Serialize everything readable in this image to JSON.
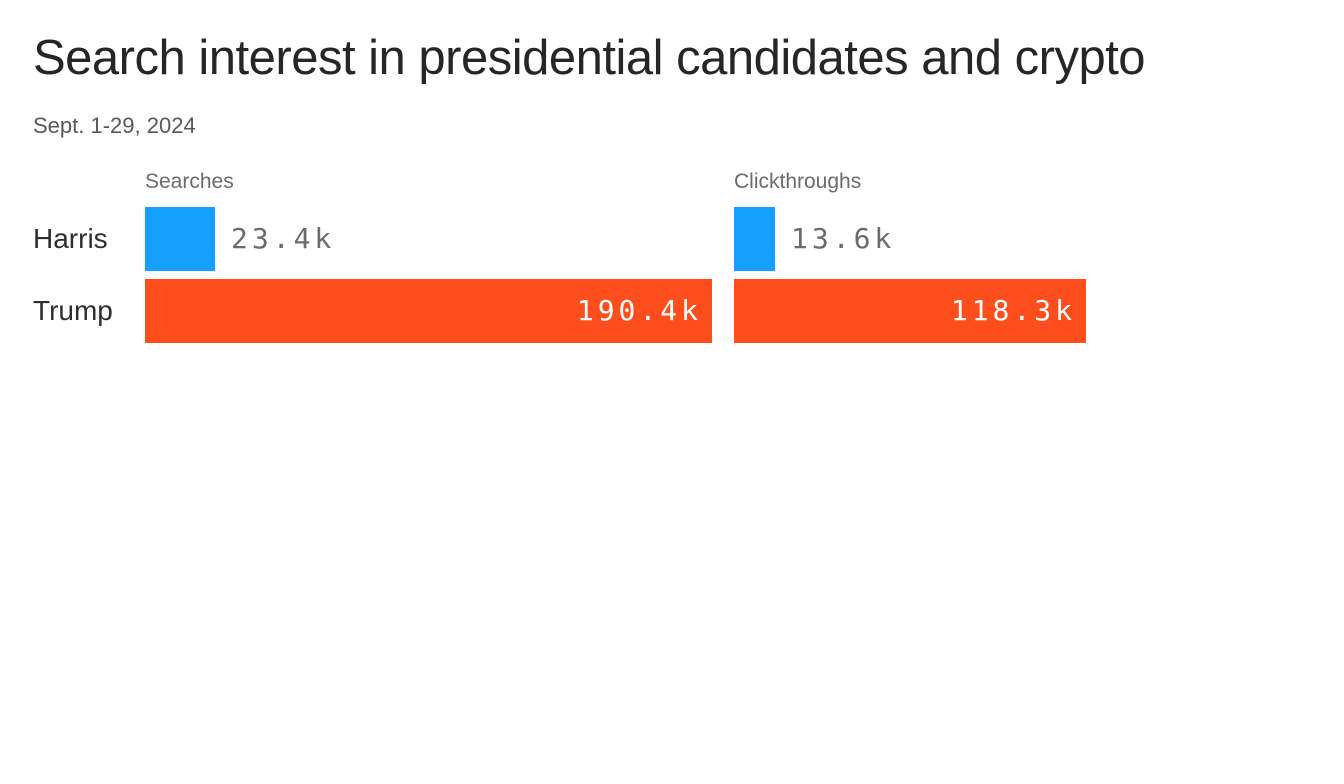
{
  "chart_data": {
    "type": "bar",
    "orientation": "horizontal",
    "title": "Search interest in presidential candidates and crypto",
    "subtitle": "Sept. 1-29, 2024",
    "metrics": [
      "Searches",
      "Clickthroughs"
    ],
    "categories": [
      "Harris",
      "Trump"
    ],
    "max_value": 190400,
    "rows": [
      {
        "label": "Harris",
        "color": "#15A0FF",
        "values": [
          23400,
          13600
        ],
        "value_labels": [
          "23.4k",
          "13.6k"
        ]
      },
      {
        "label": "Trump",
        "color": "#FF4E1E",
        "values": [
          190400,
          118300
        ],
        "value_labels": [
          "190.4k",
          "118.3k"
        ]
      }
    ],
    "series": [
      {
        "name": "Searches",
        "values": [
          23400,
          190400
        ]
      },
      {
        "name": "Clickthroughs",
        "values": [
          13600,
          118300
        ]
      }
    ],
    "legend": "none",
    "grid": "off",
    "colors": {
      "harris": "#15A0FF",
      "trump": "#FF4E1E",
      "inside_label": "#FFFFFF",
      "outside_label": "#6B6B6B"
    }
  }
}
